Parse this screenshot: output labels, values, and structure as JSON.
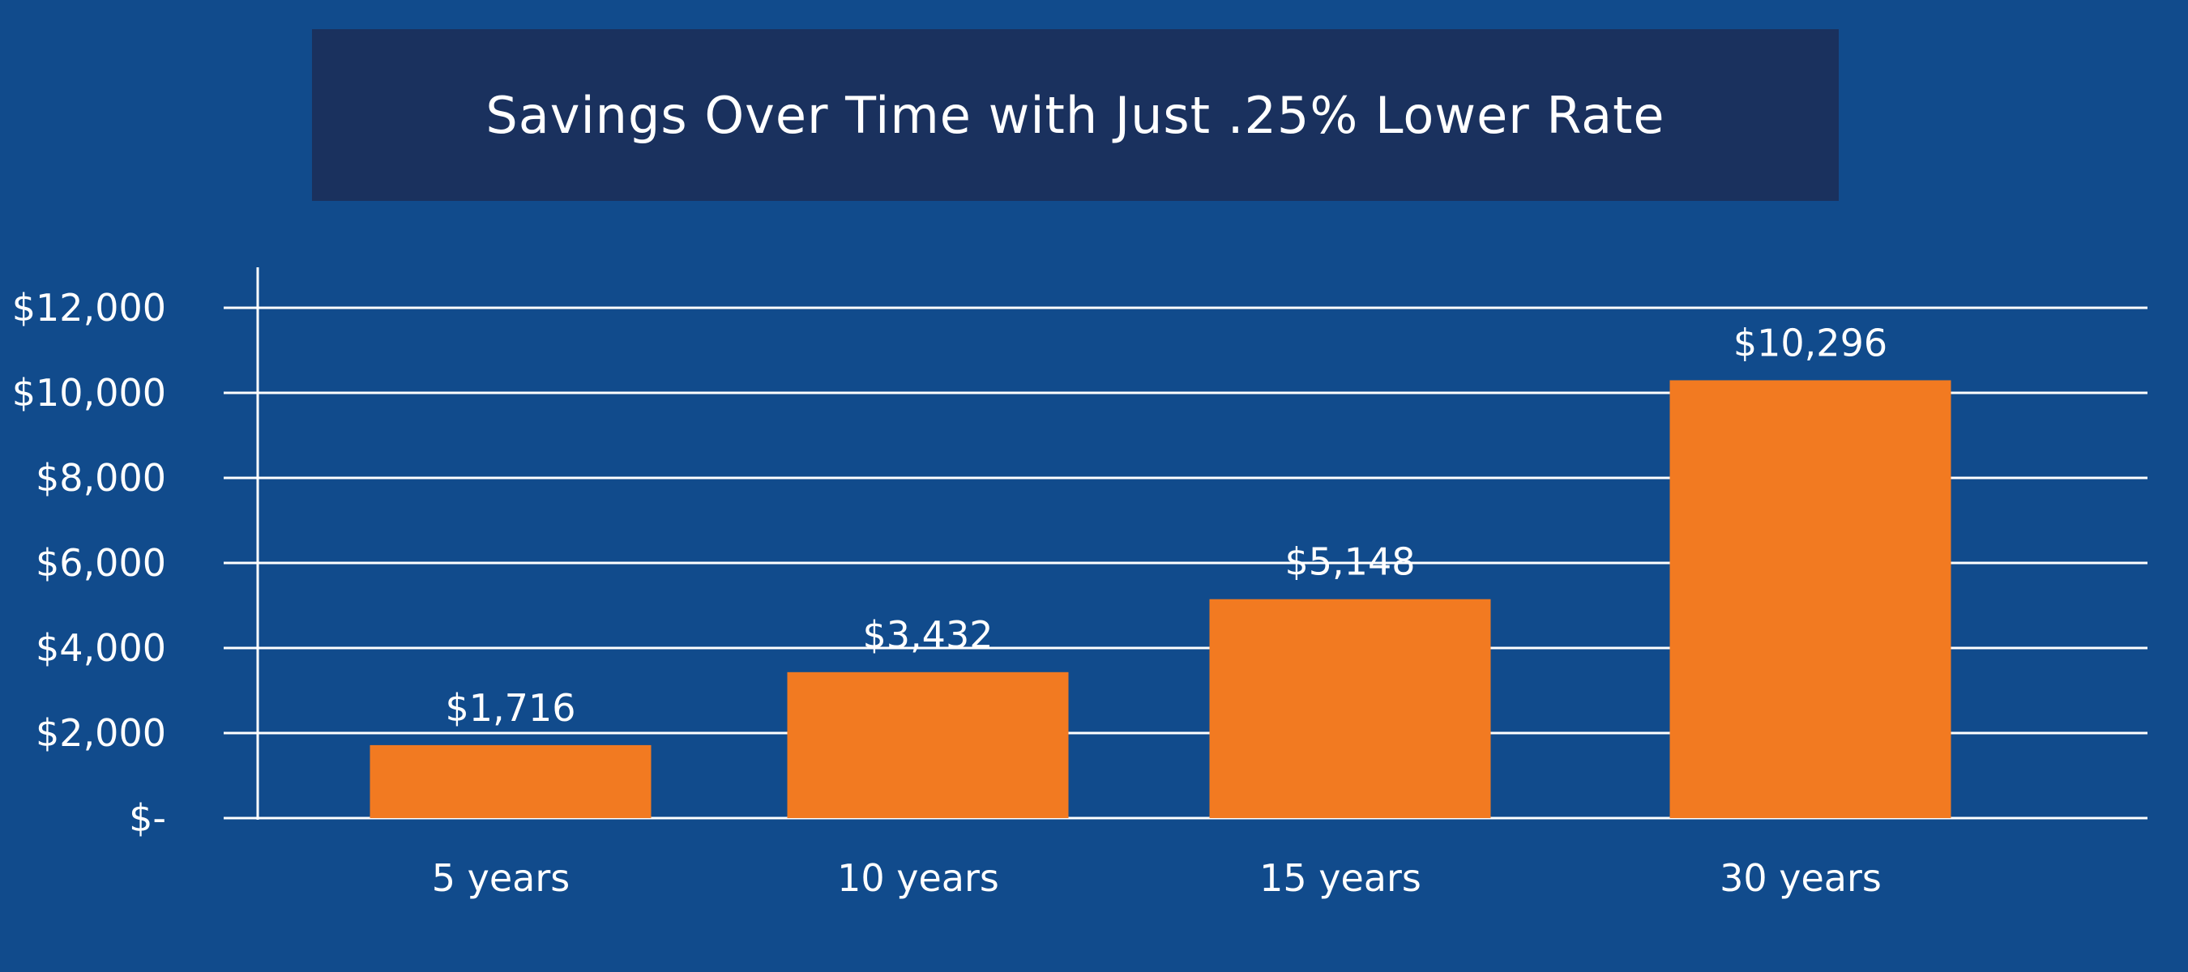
{
  "colors": {
    "background": "#114b8c",
    "title_banner": "#1a315e",
    "bar": "#f27a21",
    "grid": "#ffffff",
    "text": "#ffffff"
  },
  "chart_data": {
    "type": "bar",
    "title": "Savings Over Time with Just .25% Lower Rate",
    "categories": [
      "5 years",
      "10 years",
      "15 years",
      "30 years"
    ],
    "values": [
      1716,
      3432,
      5148,
      10296
    ],
    "data_labels": [
      "$1,716",
      "$3,432",
      "$5,148",
      "$10,296"
    ],
    "ylim": [
      0,
      12000
    ],
    "yticks": [
      0,
      2000,
      4000,
      6000,
      8000,
      10000,
      12000
    ],
    "ytick_labels": [
      "$-",
      "$2,000",
      "$4,000",
      "$6,000",
      "$8,000",
      "$10,000",
      "$12,000"
    ],
    "xlabel": "",
    "ylabel": "",
    "grid": true,
    "legend": "none"
  }
}
